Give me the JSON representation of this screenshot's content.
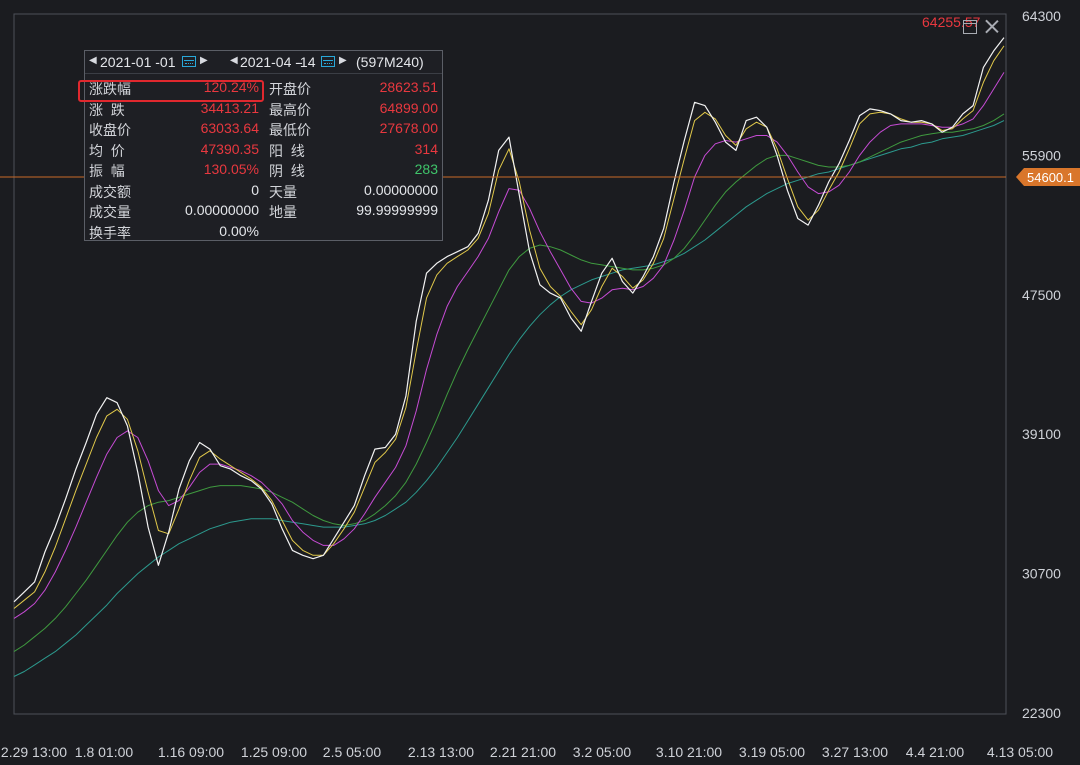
{
  "chart_data": {
    "type": "line",
    "y_ticks": [
      "64300",
      "55900",
      "47500",
      "39100",
      "30700",
      "22300"
    ],
    "x_ticks": [
      "2.29 13:00",
      "1.8 01:00",
      "1.16 09:00",
      "1.25 09:00",
      "2.5 05:00",
      "2.13 13:00",
      "2.21 21:00",
      "3.2 05:00",
      "3.10 21:00",
      "3.19 05:00",
      "3.27 13:00",
      "4.4 21:00",
      "4.13 05:00"
    ],
    "ylim": [
      22300,
      64300
    ],
    "grid": false,
    "current_price_label": "54600.1",
    "current_price": 54600.1,
    "last_high_label": "64255.57",
    "series": [
      {
        "color": "#f2f2f2",
        "values": [
          29000,
          29600,
          30200,
          32000,
          33500,
          35200,
          37000,
          38600,
          40300,
          41300,
          41000,
          39600,
          36800,
          33500,
          31200,
          33200,
          35800,
          37500,
          38600,
          38200,
          37200,
          37000,
          36600,
          36300,
          35800,
          34900,
          33400,
          32100,
          31800,
          31600,
          31800,
          32800,
          33800,
          34800,
          36600,
          38200,
          38300,
          39100,
          41400,
          45900,
          48800,
          49400,
          49800,
          50100,
          50400,
          51200,
          53200,
          56200,
          57000,
          53500,
          50100,
          48100,
          47600,
          47300,
          46100,
          45300,
          47100,
          48800,
          49700,
          48300,
          47600,
          48600,
          49800,
          51500,
          54300,
          56800,
          59100,
          58900,
          57900,
          56700,
          56200,
          58000,
          58200,
          57600,
          55900,
          53800,
          52100,
          51700,
          52900,
          54300,
          55400,
          56800,
          58300,
          58700,
          58600,
          58400,
          58000,
          57900,
          58000,
          57800,
          57300,
          57600,
          58400,
          58900,
          61200,
          62200,
          63000
        ]
      },
      {
        "color": "#e0c84a",
        "values": [
          28600,
          29100,
          29600,
          30800,
          32300,
          34000,
          35700,
          37300,
          38900,
          40200,
          40600,
          40000,
          38100,
          35600,
          33300,
          33100,
          34600,
          36300,
          37700,
          38100,
          37600,
          37200,
          36800,
          36400,
          35900,
          35100,
          33900,
          32700,
          32100,
          31800,
          31800,
          32500,
          33400,
          34400,
          35900,
          37400,
          38000,
          38800,
          40700,
          44100,
          47300,
          48700,
          49400,
          49800,
          50200,
          50900,
          52400,
          55000,
          56300,
          54300,
          51400,
          49100,
          48000,
          47400,
          46500,
          45700,
          46600,
          48000,
          49100,
          48600,
          47900,
          48400,
          49400,
          50900,
          53300,
          55700,
          58000,
          58500,
          58100,
          57100,
          56500,
          57500,
          57900,
          57600,
          56300,
          54500,
          52800,
          52000,
          52600,
          53800,
          54900,
          56300,
          57800,
          58400,
          58500,
          58400,
          58100,
          57900,
          57900,
          57800,
          57400,
          57500,
          58100,
          58600,
          60300,
          61600,
          62500
        ]
      },
      {
        "color": "#c64bd4",
        "values": [
          28000,
          28400,
          28900,
          29700,
          30800,
          32100,
          33500,
          35000,
          36500,
          37900,
          38900,
          39300,
          38900,
          37500,
          35700,
          34800,
          35100,
          35900,
          36800,
          37300,
          37300,
          37100,
          36900,
          36600,
          36200,
          35600,
          34900,
          33900,
          33200,
          32700,
          32400,
          32400,
          32800,
          33400,
          34300,
          35300,
          36200,
          37100,
          38400,
          40500,
          43000,
          45100,
          46800,
          48000,
          48900,
          49800,
          50900,
          52500,
          53900,
          53800,
          52700,
          51300,
          50100,
          49000,
          47900,
          47100,
          47000,
          47300,
          47800,
          47900,
          47800,
          48000,
          48500,
          49300,
          50800,
          52600,
          54600,
          55900,
          56600,
          56800,
          56700,
          56900,
          57100,
          57100,
          56700,
          55900,
          54900,
          54000,
          53600,
          53700,
          54100,
          54900,
          55900,
          56700,
          57300,
          57700,
          57800,
          57800,
          57800,
          57700,
          57600,
          57600,
          57800,
          58100,
          58900,
          59900,
          60900
        ]
      },
      {
        "color": "#3f9a3f",
        "values": [
          26000,
          26400,
          26900,
          27400,
          28000,
          28700,
          29500,
          30300,
          31200,
          32100,
          33000,
          33800,
          34400,
          34800,
          35000,
          35100,
          35300,
          35500,
          35700,
          35900,
          36000,
          36000,
          36000,
          35900,
          35800,
          35600,
          35300,
          35000,
          34600,
          34200,
          33900,
          33700,
          33600,
          33700,
          33900,
          34300,
          34800,
          35400,
          36200,
          37300,
          38600,
          40000,
          41500,
          42900,
          44200,
          45400,
          46600,
          47800,
          49000,
          49800,
          50300,
          50500,
          50400,
          50200,
          49900,
          49600,
          49400,
          49300,
          49200,
          49100,
          49000,
          49000,
          49100,
          49300,
          49700,
          50300,
          51100,
          52000,
          52900,
          53700,
          54300,
          54800,
          55300,
          55700,
          55900,
          55900,
          55700,
          55500,
          55300,
          55200,
          55200,
          55300,
          55500,
          55800,
          56100,
          56400,
          56700,
          56900,
          57100,
          57200,
          57300,
          57300,
          57400,
          57500,
          57700,
          58000,
          58400
        ]
      },
      {
        "color": "#2c9a8e",
        "values": [
          24500,
          24800,
          25200,
          25600,
          26000,
          26500,
          27000,
          27600,
          28200,
          28800,
          29500,
          30100,
          30700,
          31200,
          31700,
          32100,
          32500,
          32800,
          33100,
          33400,
          33600,
          33800,
          33900,
          34000,
          34000,
          34000,
          33900,
          33800,
          33700,
          33600,
          33500,
          33500,
          33500,
          33600,
          33700,
          33900,
          34200,
          34600,
          35000,
          35600,
          36300,
          37100,
          38000,
          38900,
          39900,
          40900,
          41900,
          42900,
          43900,
          44800,
          45600,
          46300,
          46900,
          47400,
          47800,
          48100,
          48400,
          48600,
          48800,
          49000,
          49100,
          49200,
          49300,
          49500,
          49700,
          50000,
          50400,
          50800,
          51300,
          51800,
          52300,
          52800,
          53200,
          53600,
          53900,
          54200,
          54400,
          54600,
          54800,
          54900,
          55100,
          55300,
          55500,
          55700,
          55900,
          56100,
          56300,
          56400,
          56600,
          56700,
          56900,
          57000,
          57100,
          57300,
          57500,
          57700,
          58000
        ]
      }
    ]
  },
  "panel": {
    "start_date": "2021-01 -01",
    "end_date": "2021-04 -14",
    "dash": "-",
    "count": "(597M240)",
    "rows": [
      {
        "l1": "涨跌幅",
        "v1": "120.24%",
        "c1": "red",
        "l2": "开盘价",
        "v2": "28623.51",
        "c2": "red"
      },
      {
        "l1": "涨  跌",
        "v1": "34413.21",
        "c1": "red",
        "l2": "最高价",
        "v2": "64899.00",
        "c2": "red"
      },
      {
        "l1": "收盘价",
        "v1": "63033.64",
        "c1": "red",
        "l2": "最低价",
        "v2": "27678.00",
        "c2": "red"
      },
      {
        "l1": "均  价",
        "v1": "47390.35",
        "c1": "red",
        "l2": "阳  线",
        "v2": "314",
        "c2": "red"
      },
      {
        "l1": "振  幅",
        "v1": "130.05%",
        "c1": "red",
        "l2": "阴  线",
        "v2": "283",
        "c2": "green"
      },
      {
        "l1": "成交额",
        "v1": "0",
        "c1": "white",
        "l2": "天量",
        "v2": "0.00000000",
        "c2": "white"
      },
      {
        "l1": "成交量",
        "v1": "0.00000000",
        "c1": "white",
        "l2": "地量",
        "v2": "99.99999999",
        "c2": "white"
      },
      {
        "l1": "换手率",
        "v1": "0.00%",
        "c1": "white",
        "l2": "",
        "v2": "",
        "c2": "white"
      }
    ]
  },
  "colors": {
    "up": "#e8383f",
    "down": "#3fc46a",
    "price_tag": "#d9762b",
    "icon": "#29a8d8"
  }
}
